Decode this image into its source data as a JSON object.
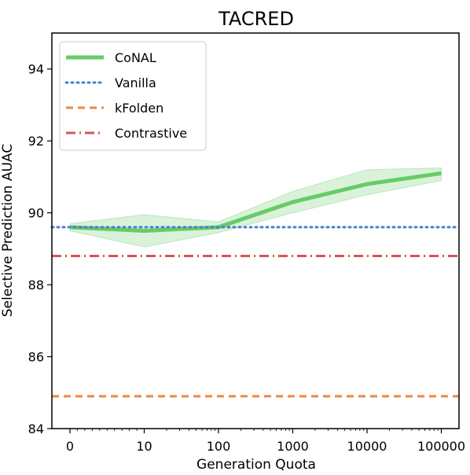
{
  "chart_data": {
    "type": "line",
    "title": "TACRED",
    "xlabel": "Generation Quota",
    "ylabel": "Selective Prediction AUAC",
    "x_scale": "symlog",
    "x_ticks": [
      0,
      10,
      100,
      1000,
      10000,
      100000
    ],
    "x_tick_labels": [
      "0",
      "10",
      "100",
      "1000",
      "10000",
      "100000"
    ],
    "ylim": [
      84,
      95
    ],
    "y_ticks": [
      84,
      86,
      88,
      90,
      92,
      94
    ],
    "legend_position": "top-left",
    "grid": false,
    "series": [
      {
        "name": "CoNAL",
        "style": "solid",
        "color": "#66cc66",
        "x": [
          0,
          10,
          100,
          1000,
          10000,
          100000
        ],
        "values": [
          89.6,
          89.5,
          89.6,
          90.3,
          90.8,
          91.1
        ],
        "band_lower": [
          89.5,
          89.05,
          89.45,
          90.0,
          90.5,
          90.9
        ],
        "band_upper": [
          89.7,
          89.95,
          89.75,
          90.6,
          91.2,
          91.25
        ]
      },
      {
        "name": "Vanilla",
        "style": "dotted",
        "color": "#4a7fd4",
        "constant": 89.6
      },
      {
        "name": "kFolden",
        "style": "dashed",
        "color": "#ee8844",
        "constant": 84.9
      },
      {
        "name": "Contrastive",
        "style": "dashdot",
        "color": "#d65555",
        "constant": 88.8
      }
    ]
  }
}
